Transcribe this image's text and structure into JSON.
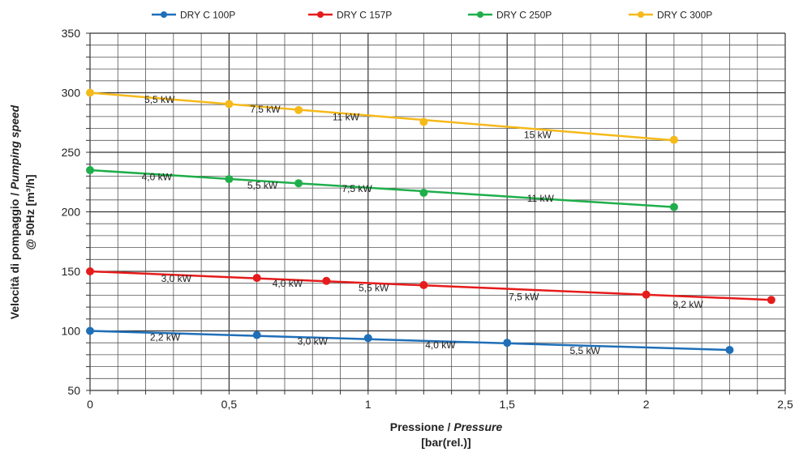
{
  "chart_data": {
    "type": "line",
    "title": "",
    "xlabel": [
      "Pressione / ",
      "Pressure"
    ],
    "xlabel_unit": "[bar(rel.)]",
    "ylabel": [
      "Velocità di pompaggio / ",
      "Pumping speed"
    ],
    "ylabel_unit": "@ 50Hz [m³/h]",
    "xlim": [
      0,
      2.5
    ],
    "ylim": [
      50,
      350
    ],
    "x_ticks": [
      {
        "value": 0,
        "label": "0"
      },
      {
        "value": 0.5,
        "label": "0,5"
      },
      {
        "value": 1,
        "label": "1"
      },
      {
        "value": 1.5,
        "label": "1,5"
      },
      {
        "value": 2,
        "label": "2"
      },
      {
        "value": 2.5,
        "label": "2,5"
      }
    ],
    "y_ticks": [
      50,
      100,
      150,
      200,
      250,
      300,
      350
    ],
    "grid": true,
    "legend_position": "top",
    "series": [
      {
        "name": "DRY C 100P",
        "color": "#1f6fb8",
        "line": {
          "x": [
            0,
            2.3
          ],
          "y": [
            100,
            84
          ]
        },
        "points": [
          {
            "x": 0,
            "y": 100,
            "label": "2,2 kW",
            "label_at": [
              0.27,
              92
            ]
          },
          {
            "x": 0.6,
            "y": 96.5,
            "label": "3,0 kW",
            "label_at": [
              0.8,
              88.5
            ]
          },
          {
            "x": 1,
            "y": 94,
            "label": "4,0 kW",
            "label_at": [
              1.26,
              85.5
            ]
          },
          {
            "x": 1.5,
            "y": 90,
            "label": "5,5 kW",
            "label_at": [
              1.78,
              80.5
            ]
          },
          {
            "x": 2.3,
            "y": 84,
            "label": "",
            "label_at": null
          }
        ]
      },
      {
        "name": "DRY C 157P",
        "color": "#e61b1b",
        "line": {
          "x": [
            0,
            2.45
          ],
          "y": [
            150,
            126
          ]
        },
        "points": [
          {
            "x": 0,
            "y": 150,
            "label": "3,0 kW",
            "label_at": [
              0.31,
              141
            ]
          },
          {
            "x": 0.6,
            "y": 144.5,
            "label": "",
            "label_at": null
          },
          {
            "x": 0.85,
            "y": 142,
            "label": "4,0 kW",
            "label_at": [
              0.71,
              137
            ]
          },
          {
            "x": 1.2,
            "y": 138.5,
            "label": "5,5 kW",
            "label_at": [
              1.02,
              133.5
            ]
          },
          {
            "x": 2,
            "y": 130.5,
            "label": "7,5 kW",
            "label_at": [
              1.56,
              126
            ]
          },
          {
            "x": 2.45,
            "y": 126,
            "label": "9,2 kW",
            "label_at": [
              2.15,
              119.5
            ]
          }
        ]
      },
      {
        "name": "DRY C 250P",
        "color": "#1fae4b",
        "line": {
          "x": [
            0,
            2.1
          ],
          "y": [
            235,
            204
          ]
        },
        "points": [
          {
            "x": 0,
            "y": 235,
            "label": "4,0 kW",
            "label_at": [
              0.24,
              226.5
            ]
          },
          {
            "x": 0.5,
            "y": 227.5,
            "label": "5,5 kW",
            "label_at": [
              0.62,
              219.5
            ]
          },
          {
            "x": 0.75,
            "y": 224,
            "label": "",
            "label_at": null
          },
          {
            "x": 1.2,
            "y": 216,
            "label": "7,5 kW",
            "label_at": [
              0.96,
              216.5
            ]
          },
          {
            "x": 2.1,
            "y": 204,
            "label": "11 kW",
            "label_at": [
              1.62,
              208.5
            ]
          }
        ]
      },
      {
        "name": "DRY C 300P",
        "color": "#f5b91a",
        "line": {
          "x": [
            0,
            2.1
          ],
          "y": [
            300,
            260
          ]
        },
        "points": [
          {
            "x": 0,
            "y": 300,
            "label": "5,5 kW",
            "label_at": [
              0.25,
              291.5
            ]
          },
          {
            "x": 0.5,
            "y": 290.5,
            "label": "7,5 kW",
            "label_at": [
              0.63,
              283.5
            ]
          },
          {
            "x": 0.75,
            "y": 285.5,
            "label": "11 kW",
            "label_at": [
              0.92,
              277
            ]
          },
          {
            "x": 1.2,
            "y": 275.5,
            "label": "",
            "label_at": null
          },
          {
            "x": 2.1,
            "y": 260.5,
            "label": "15 kW",
            "label_at": [
              1.61,
              262
            ]
          }
        ]
      }
    ]
  }
}
